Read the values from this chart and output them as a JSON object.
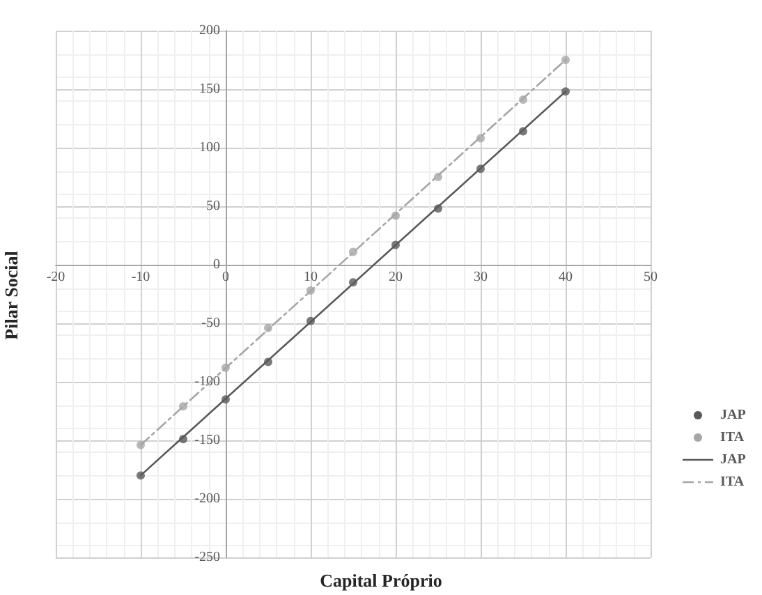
{
  "chart_data": {
    "type": "scatter",
    "xlabel": "Capital Próprio",
    "ylabel": "Pilar Social",
    "xlim": [
      -20,
      50
    ],
    "xticks": [
      -20,
      -10,
      0,
      10,
      20,
      30,
      40,
      50
    ],
    "ylim": [
      -250,
      200
    ],
    "yticks": [
      -250,
      -200,
      -150,
      -100,
      -50,
      0,
      50,
      100,
      150,
      200
    ],
    "grid": true,
    "legend": "right",
    "marker": "circle",
    "series": [
      {
        "name": "JAP",
        "color": "#595959",
        "x": [
          -10,
          -5,
          0,
          5,
          10,
          15,
          20,
          25,
          30,
          35,
          40
        ],
        "values": [
          -180,
          -149,
          -115,
          -83,
          -48,
          -15,
          17,
          48,
          82,
          114,
          148
        ]
      },
      {
        "name": "ITA",
        "color": "#a6a6a6",
        "x": [
          -10,
          -5,
          0,
          5,
          10,
          15,
          20,
          25,
          30,
          35,
          40
        ],
        "values": [
          -154,
          -121,
          -88,
          -54,
          -22,
          11,
          42,
          75,
          108,
          141,
          175
        ]
      },
      {
        "name": "JAP",
        "type": "line",
        "color": "#595959",
        "marker": "none",
        "line_style": "solid",
        "x": [
          -10,
          40
        ],
        "values": [
          -180,
          148
        ]
      },
      {
        "name": "ITA",
        "type": "line",
        "color": "#a6a6a6",
        "marker": "none",
        "line_style": "dashed",
        "x": [
          -10,
          40
        ],
        "values": [
          -154,
          175
        ]
      }
    ]
  }
}
